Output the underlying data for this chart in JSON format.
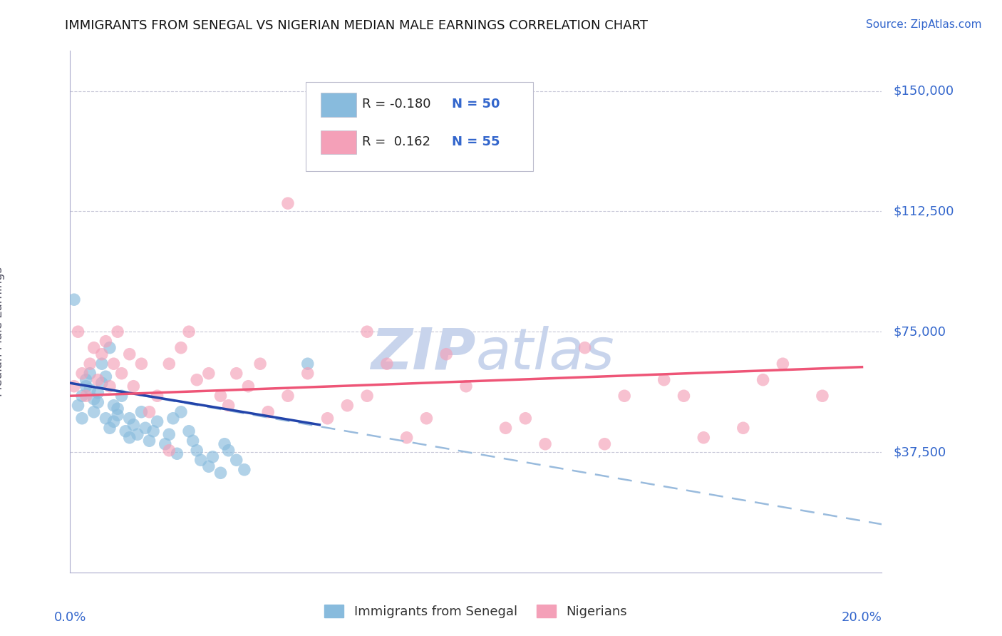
{
  "title": "IMMIGRANTS FROM SENEGAL VS NIGERIAN MEDIAN MALE EARNINGS CORRELATION CHART",
  "source": "Source: ZipAtlas.com",
  "ylabel": "Median Male Earnings",
  "ytick_labels": [
    "$37,500",
    "$75,000",
    "$112,500",
    "$150,000"
  ],
  "ytick_values": [
    37500,
    75000,
    112500,
    150000
  ],
  "ylim": [
    0,
    162500
  ],
  "xlim": [
    0.0,
    0.205
  ],
  "legend_entries": [
    {
      "label_r": "R = -0.180",
      "label_n": "N = 50",
      "color": "#a8c8e8"
    },
    {
      "label_r": "R =  0.162",
      "label_n": "N = 55",
      "color": "#f4a0b8"
    }
  ],
  "legend_bottom": [
    "Immigrants from Senegal",
    "Nigerians"
  ],
  "axis_color": "#3366cc",
  "grid_color": "#c8c8d8",
  "watermark_color": "#c8d4ec",
  "blue_color": "#88bbdd",
  "pink_color": "#f4a0b8",
  "blue_line_color": "#2244aa",
  "pink_line_color": "#ee5577",
  "dashed_line_color": "#99bbdd",
  "senegal_x": [
    0.001,
    0.002,
    0.003,
    0.003,
    0.004,
    0.004,
    0.005,
    0.005,
    0.006,
    0.006,
    0.007,
    0.007,
    0.008,
    0.008,
    0.009,
    0.009,
    0.01,
    0.01,
    0.011,
    0.011,
    0.012,
    0.012,
    0.013,
    0.014,
    0.015,
    0.015,
    0.016,
    0.017,
    0.018,
    0.019,
    0.02,
    0.021,
    0.022,
    0.024,
    0.025,
    0.026,
    0.027,
    0.028,
    0.03,
    0.031,
    0.032,
    0.033,
    0.035,
    0.036,
    0.038,
    0.039,
    0.04,
    0.042,
    0.044,
    0.06
  ],
  "senegal_y": [
    85000,
    52000,
    48000,
    55000,
    58000,
    60000,
    62000,
    57000,
    54000,
    50000,
    56000,
    53000,
    59000,
    65000,
    61000,
    48000,
    45000,
    70000,
    52000,
    47000,
    51000,
    49000,
    55000,
    44000,
    42000,
    48000,
    46000,
    43000,
    50000,
    45000,
    41000,
    44000,
    47000,
    40000,
    43000,
    48000,
    37000,
    50000,
    44000,
    41000,
    38000,
    35000,
    33000,
    36000,
    31000,
    40000,
    38000,
    35000,
    32000,
    65000
  ],
  "nigerian_x": [
    0.001,
    0.002,
    0.003,
    0.004,
    0.005,
    0.006,
    0.007,
    0.008,
    0.009,
    0.01,
    0.011,
    0.012,
    0.013,
    0.015,
    0.016,
    0.018,
    0.02,
    0.022,
    0.025,
    0.028,
    0.03,
    0.032,
    0.035,
    0.038,
    0.04,
    0.042,
    0.045,
    0.048,
    0.05,
    0.055,
    0.06,
    0.065,
    0.07,
    0.075,
    0.08,
    0.085,
    0.09,
    0.1,
    0.11,
    0.12,
    0.13,
    0.14,
    0.15,
    0.16,
    0.17,
    0.18,
    0.19,
    0.025,
    0.055,
    0.075,
    0.095,
    0.115,
    0.135,
    0.155,
    0.175
  ],
  "nigerian_y": [
    58000,
    75000,
    62000,
    55000,
    65000,
    70000,
    60000,
    68000,
    72000,
    58000,
    65000,
    75000,
    62000,
    68000,
    58000,
    65000,
    50000,
    55000,
    65000,
    70000,
    75000,
    60000,
    62000,
    55000,
    52000,
    62000,
    58000,
    65000,
    50000,
    55000,
    62000,
    48000,
    52000,
    55000,
    65000,
    42000,
    48000,
    58000,
    45000,
    40000,
    70000,
    55000,
    60000,
    42000,
    45000,
    65000,
    55000,
    38000,
    115000,
    75000,
    68000,
    48000,
    40000,
    55000,
    60000
  ],
  "blue_trend_x0": 0.0,
  "blue_trend_x1": 0.063,
  "blue_trend_y0": 59000,
  "blue_trend_y1": 46000,
  "pink_trend_x0": 0.0,
  "pink_trend_x1": 0.2,
  "pink_trend_y0": 55000,
  "pink_trend_y1": 64000,
  "dashed_trend_x0": 0.0,
  "dashed_trend_x1": 0.205,
  "dashed_trend_y0": 59000,
  "dashed_trend_y1": 15000
}
